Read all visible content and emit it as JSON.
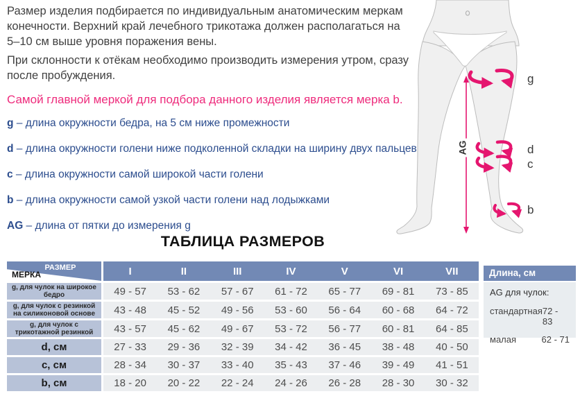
{
  "intro": {
    "p1": "Размер изделия подбирается по индивидуальным анатомическим меркам конечности. Верхний край лечебного трикотажа должен располагаться на 5–10 см выше уровня поражения вены.",
    "p2": "При склонности к отёкам необходимо производить измерения утром, сразу после пробуждения.",
    "highlight": "Самой главной меркой для подбора данного изделия является мерка b."
  },
  "measurements": [
    {
      "key": "g",
      "text": "– длина окружности бедра, на 5 см ниже промежности"
    },
    {
      "key": "d",
      "text": "– длина окружности голени ниже подколенной складки на ширину двух пальцев"
    },
    {
      "key": "c",
      "text": "– длина окружности самой широкой части голени"
    },
    {
      "key": "b",
      "text": "– длина окружности самой узкой части голени над лодыжками"
    },
    {
      "key": "AG",
      "text": "– длина от пятки до измерения g"
    }
  ],
  "diagram": {
    "labels": {
      "g": "g",
      "d": "d",
      "c": "c",
      "b": "b",
      "ag": "AG"
    }
  },
  "size_table": {
    "title": "ТАБЛИЦА РАЗМЕРОВ",
    "corner": {
      "top": "РАЗМЕР",
      "bottom": "МЕРКА"
    },
    "columns": [
      "I",
      "II",
      "III",
      "IV",
      "V",
      "VI",
      "VII"
    ],
    "rows": [
      {
        "label": "g, для чулок на широкое бедро",
        "values": [
          "49 - 57",
          "53 - 62",
          "57 - 67",
          "61 - 72",
          "65 - 77",
          "69 - 81",
          "73 - 85"
        ]
      },
      {
        "label": "g, для чулок с резинкой на силиконовой основе",
        "values": [
          "43 - 48",
          "45 - 52",
          "49 - 56",
          "53 - 60",
          "56 - 64",
          "60 - 68",
          "64 - 72"
        ]
      },
      {
        "label": "g, для чулок с трикотажной резинкой",
        "values": [
          "43 - 57",
          "45 - 62",
          "49 - 67",
          "53 - 72",
          "56 - 77",
          "60 - 81",
          "64 - 85"
        ]
      },
      {
        "label": "d, см",
        "values": [
          "27 - 33",
          "29 - 36",
          "32 - 39",
          "34 - 42",
          "36 - 45",
          "38 - 48",
          "40 - 50"
        ]
      },
      {
        "label": "c, см",
        "values": [
          "28 - 34",
          "30 - 37",
          "33 - 40",
          "35 - 43",
          "37 - 46",
          "39 - 49",
          "41 - 51"
        ]
      },
      {
        "label": "b, см",
        "values": [
          "18 - 20",
          "20 - 22",
          "22 - 24",
          "24 - 26",
          "26 - 28",
          "28 - 30",
          "30 - 32"
        ]
      }
    ]
  },
  "length_panel": {
    "header": "Длина, см",
    "subtitle": "AG для чулок:",
    "rows": [
      {
        "label": "стандартная",
        "value": "72 - 83"
      },
      {
        "label": "малая",
        "value": "62 - 71"
      }
    ]
  },
  "colors": {
    "header_blue": "#7289b5",
    "label_blue": "#b7c2d8",
    "row_gray": "#eceef0",
    "panel_gray": "#e9edf0",
    "accent_pink_arrows": "#e5166f",
    "accent_pink_text": "#ee2b7c",
    "text_blue": "#2c4d8e",
    "body_text": "#414141"
  }
}
